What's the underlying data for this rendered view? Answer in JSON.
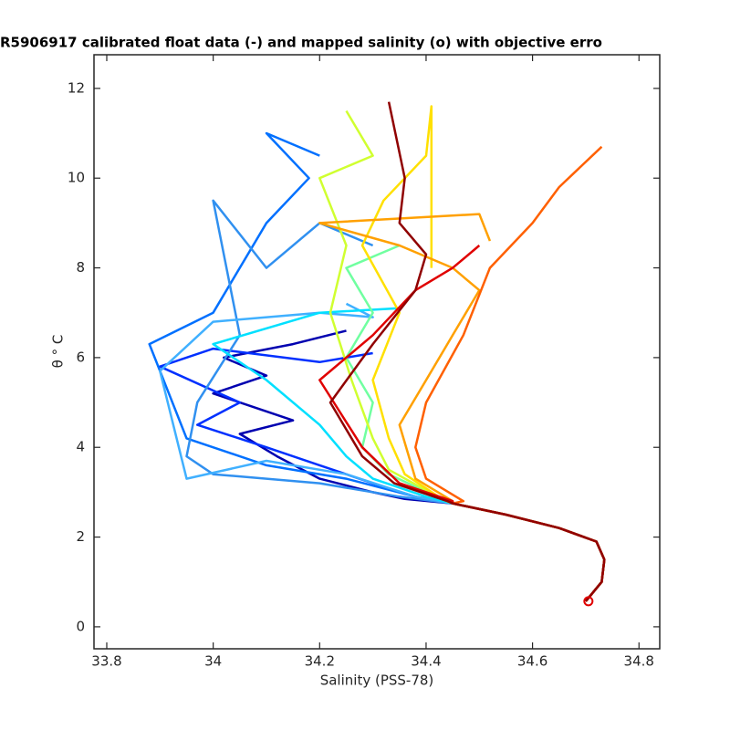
{
  "chart_data": {
    "type": "line",
    "title": "R5906917 calibrated float data (-) and mapped salinity (o) with objective erro",
    "xlabel": "Salinity (PSS-78)",
    "ylabel": "θ ° C",
    "xlim": [
      33.776,
      34.839
    ],
    "ylim": [
      -0.49,
      12.75
    ],
    "xticks": [
      33.8,
      34,
      34.2,
      34.4,
      34.6,
      34.8
    ],
    "yticks": [
      0,
      2,
      4,
      6,
      8,
      10,
      12
    ],
    "grid": false,
    "series": [
      {
        "color": "#0000b0",
        "x": [
          34.7,
          34.73,
          34.735,
          34.72,
          34.65,
          34.55,
          34.45,
          34.36,
          34.3,
          34.2,
          34.12,
          34.05,
          34.15,
          34.0,
          34.1,
          34.02,
          34.15,
          34.25
        ],
        "values": [
          0.57,
          1.0,
          1.5,
          1.9,
          2.2,
          2.5,
          2.75,
          2.85,
          3.0,
          3.3,
          3.8,
          4.3,
          4.6,
          5.2,
          5.6,
          6.0,
          6.3,
          6.6
        ]
      },
      {
        "color": "#0030ff",
        "x": [
          34.7,
          34.73,
          34.735,
          34.72,
          34.65,
          34.55,
          34.45,
          34.38,
          34.3,
          34.2,
          34.1,
          33.97,
          34.05,
          33.9,
          34.0,
          34.2,
          34.3
        ],
        "values": [
          0.57,
          1.0,
          1.5,
          1.9,
          2.2,
          2.5,
          2.75,
          2.9,
          3.2,
          3.6,
          4.0,
          4.5,
          5.0,
          5.8,
          6.2,
          5.9,
          6.1
        ]
      },
      {
        "color": "#0070ff",
        "x": [
          34.7,
          34.73,
          34.735,
          34.72,
          34.65,
          34.55,
          34.45,
          34.38,
          34.25,
          34.1,
          33.95,
          33.88,
          34.0,
          34.1,
          34.18,
          34.1,
          34.2
        ],
        "values": [
          0.57,
          1.0,
          1.5,
          1.9,
          2.2,
          2.5,
          2.75,
          2.9,
          3.3,
          3.6,
          4.2,
          6.3,
          7.0,
          9.0,
          10.0,
          11.0,
          10.5
        ]
      },
      {
        "color": "#3090f0",
        "x": [
          34.7,
          34.73,
          34.735,
          34.72,
          34.65,
          34.55,
          34.45,
          34.35,
          34.2,
          34.0,
          33.95,
          33.97,
          34.05,
          34.0,
          34.1,
          34.2,
          34.3
        ],
        "values": [
          0.57,
          1.0,
          1.5,
          1.9,
          2.2,
          2.5,
          2.75,
          2.9,
          3.2,
          3.4,
          3.8,
          5.0,
          6.5,
          9.5,
          8.0,
          9.0,
          8.5
        ]
      },
      {
        "color": "#40b0ff",
        "x": [
          34.7,
          34.73,
          34.735,
          34.72,
          34.65,
          34.55,
          34.45,
          34.38,
          34.25,
          34.1,
          33.95,
          33.9,
          34.0,
          34.2,
          34.3,
          34.25
        ],
        "values": [
          0.57,
          1.0,
          1.5,
          1.9,
          2.2,
          2.5,
          2.75,
          2.9,
          3.4,
          3.7,
          3.3,
          5.7,
          6.8,
          7.0,
          6.9,
          7.2
        ]
      },
      {
        "color": "#00e0ff",
        "x": [
          34.7,
          34.73,
          34.735,
          34.72,
          34.65,
          34.55,
          34.45,
          34.4,
          34.3,
          34.25,
          34.2,
          34.1,
          34.0,
          34.2,
          34.35
        ],
        "values": [
          0.57,
          1.0,
          1.5,
          1.9,
          2.2,
          2.5,
          2.75,
          2.9,
          3.3,
          3.8,
          4.5,
          5.5,
          6.3,
          7.0,
          7.1
        ]
      },
      {
        "color": "#70ffa0",
        "x": [
          34.7,
          34.73,
          34.735,
          34.72,
          34.65,
          34.55,
          34.45,
          34.42,
          34.33,
          34.28,
          34.3,
          34.25,
          34.3,
          34.25,
          34.35
        ],
        "values": [
          0.57,
          1.0,
          1.5,
          1.9,
          2.2,
          2.5,
          2.75,
          2.9,
          3.4,
          4.0,
          5.0,
          6.0,
          7.0,
          8.0,
          8.5
        ]
      },
      {
        "color": "#d0ff30",
        "x": [
          34.7,
          34.73,
          34.735,
          34.72,
          34.65,
          34.55,
          34.45,
          34.43,
          34.33,
          34.3,
          34.26,
          34.22,
          34.25,
          34.2,
          34.3,
          34.25
        ],
        "values": [
          0.57,
          1.0,
          1.5,
          1.9,
          2.2,
          2.5,
          2.75,
          2.85,
          3.5,
          4.2,
          5.5,
          7.0,
          8.5,
          10.0,
          10.5,
          11.5
        ]
      },
      {
        "color": "#ffe000",
        "x": [
          34.7,
          34.73,
          34.735,
          34.72,
          34.65,
          34.55,
          34.45,
          34.43,
          34.36,
          34.33,
          34.3,
          34.35,
          34.28,
          34.32,
          34.4,
          34.41,
          34.41
        ],
        "values": [
          0.57,
          1.0,
          1.5,
          1.9,
          2.2,
          2.5,
          2.75,
          2.85,
          3.4,
          4.2,
          5.5,
          7.0,
          8.5,
          9.5,
          10.5,
          11.6,
          8.0
        ]
      },
      {
        "color": "#ffa000",
        "x": [
          34.7,
          34.73,
          34.735,
          34.72,
          34.65,
          34.55,
          34.45,
          34.45,
          34.38,
          34.35,
          34.4,
          34.45,
          34.5,
          34.45,
          34.35,
          34.2,
          34.5,
          34.52
        ],
        "values": [
          0.57,
          1.0,
          1.5,
          1.9,
          2.2,
          2.5,
          2.75,
          2.8,
          3.3,
          4.5,
          5.5,
          6.5,
          7.5,
          8.0,
          8.5,
          9.0,
          9.2,
          8.6
        ]
      },
      {
        "color": "#ff6000",
        "x": [
          34.7,
          34.73,
          34.735,
          34.72,
          34.65,
          34.55,
          34.45,
          34.47,
          34.4,
          34.38,
          34.4,
          34.47,
          34.52,
          34.6,
          34.65,
          34.73
        ],
        "values": [
          0.57,
          1.0,
          1.5,
          1.9,
          2.2,
          2.5,
          2.75,
          2.8,
          3.3,
          4.0,
          5.0,
          6.5,
          8.0,
          9.0,
          9.8,
          10.7
        ]
      },
      {
        "color": "#e00000",
        "x": [
          34.7,
          34.73,
          34.735,
          34.72,
          34.65,
          34.55,
          34.45,
          34.45,
          34.35,
          34.28,
          34.2,
          34.3,
          34.38,
          34.45,
          34.5
        ],
        "values": [
          0.57,
          1.0,
          1.5,
          1.9,
          2.2,
          2.5,
          2.75,
          2.8,
          3.2,
          4.0,
          5.5,
          6.5,
          7.5,
          8.0,
          8.5
        ]
      },
      {
        "color": "#900000",
        "x": [
          34.7,
          34.73,
          34.735,
          34.72,
          34.65,
          34.55,
          34.45,
          34.44,
          34.34,
          34.28,
          34.22,
          34.3,
          34.38,
          34.4,
          34.35,
          34.36,
          34.33
        ],
        "values": [
          0.57,
          1.0,
          1.5,
          1.9,
          2.2,
          2.5,
          2.75,
          2.8,
          3.2,
          3.8,
          5.0,
          6.3,
          7.5,
          8.3,
          9.0,
          10.0,
          11.7
        ]
      }
    ],
    "mapped": {
      "x": 34.705,
      "y": 0.57,
      "color": "#e00000"
    }
  }
}
